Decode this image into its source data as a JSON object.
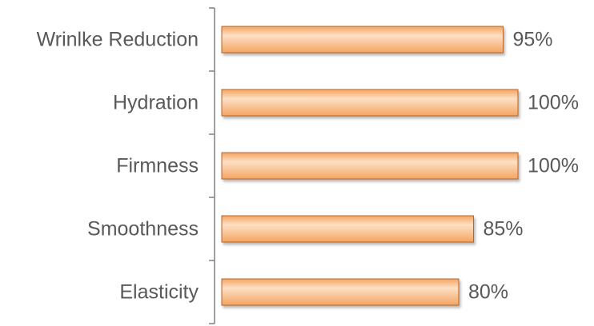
{
  "chart_data": {
    "type": "bar",
    "orientation": "horizontal",
    "categories": [
      "Wrinlke Reduction",
      "Hydration",
      "Firmness",
      "Smoothness",
      "Elasticity"
    ],
    "values": [
      95,
      100,
      100,
      85,
      80
    ],
    "value_labels": [
      "95%",
      "100%",
      "100%",
      "85%",
      "80%"
    ],
    "xlim": [
      0,
      100
    ],
    "grid": false,
    "legend": "none",
    "bar_color": "#f4a460",
    "bar_highlight_color": "#fde0c5",
    "bar_edge_color": "#b8652a"
  }
}
